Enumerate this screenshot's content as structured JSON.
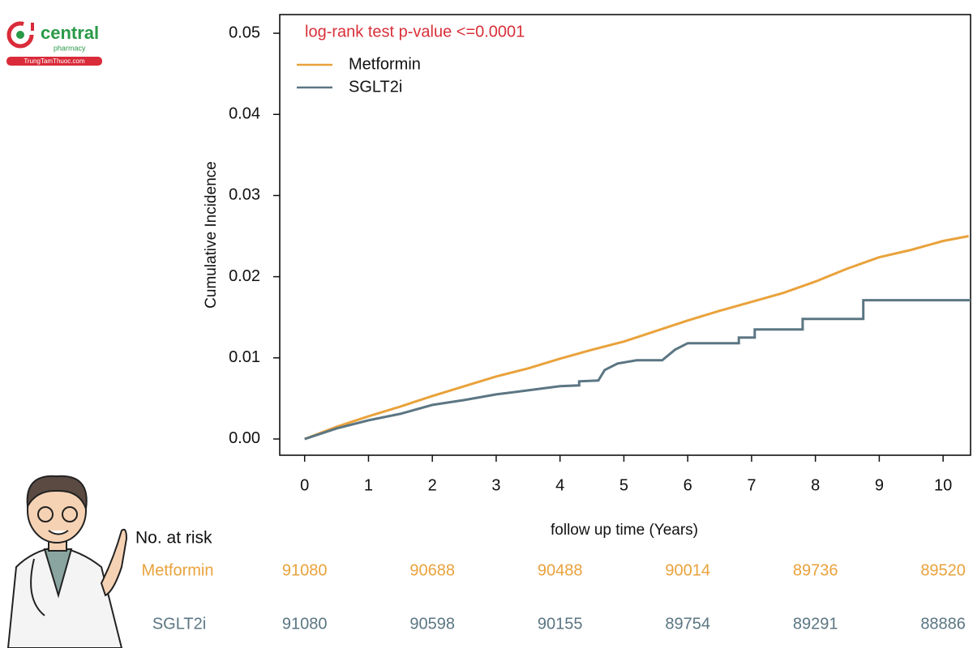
{
  "logo": {
    "name": "central",
    "sub": "pharmacy",
    "site": "TrungTamThuoc.com"
  },
  "chart_data": {
    "type": "line",
    "annotation": "log-rank test p-value <=0.0001",
    "x_label": "follow up time (Years)",
    "y_label": "Cumulative Incidence",
    "xlim": [
      -0.39,
      10.43
    ],
    "ylim": [
      -0.002,
      0.0523
    ],
    "xticks": [
      0,
      1,
      2,
      3,
      4,
      5,
      6,
      7,
      8,
      9,
      10
    ],
    "yticks": [
      {
        "value": 0,
        "label": "0.00"
      },
      0.01,
      0.02,
      0.03,
      0.04,
      0.05
    ],
    "legend": "upper left",
    "series": [
      {
        "name": "Metformin",
        "color": "#e9a23b",
        "x": [
          0,
          0.5,
          1,
          1.5,
          2,
          2.5,
          3,
          3.5,
          4,
          4.5,
          5,
          5.5,
          6,
          6.5,
          7,
          7.5,
          8,
          8.5,
          9,
          9.5,
          10,
          10.4
        ],
        "values": [
          0,
          0.0015,
          0.0028,
          0.004,
          0.0053,
          0.0065,
          0.0077,
          0.0087,
          0.0099,
          0.011,
          0.012,
          0.0133,
          0.0146,
          0.0158,
          0.0169,
          0.018,
          0.0194,
          0.021,
          0.0224,
          0.0233,
          0.0244,
          0.025
        ]
      },
      {
        "name": "SGLT2i",
        "color": "#5b7683",
        "x": [
          0,
          0.5,
          1,
          1.5,
          2,
          2.5,
          3,
          3.5,
          4,
          4.3,
          4.3,
          4.6,
          4.7,
          4.9,
          5.2,
          5.6,
          5.8,
          6,
          6.8,
          6.8,
          7.05,
          7.05,
          7.8,
          7.8,
          8.75,
          8.75,
          10.43
        ],
        "values": [
          0,
          0.0013,
          0.0023,
          0.0031,
          0.0042,
          0.0048,
          0.0055,
          0.006,
          0.0065,
          0.0066,
          0.0071,
          0.0072,
          0.0085,
          0.0093,
          0.0097,
          0.0097,
          0.011,
          0.0118,
          0.0118,
          0.0125,
          0.0125,
          0.0135,
          0.0135,
          0.0148,
          0.0148,
          0.0171,
          0.0171
        ]
      }
    ],
    "risk_table": {
      "title": "No. at risk",
      "times": [
        0,
        2,
        4,
        6,
        8,
        10
      ],
      "rows": [
        {
          "name": "Metformin",
          "color": "#e9a23b",
          "values": [
            91080,
            90688,
            90488,
            90014,
            89736,
            89520
          ]
        },
        {
          "name": "SGLT2i",
          "color": "#5b7683",
          "values": [
            91080,
            90598,
            90155,
            89754,
            89291,
            88886
          ]
        }
      ]
    }
  }
}
